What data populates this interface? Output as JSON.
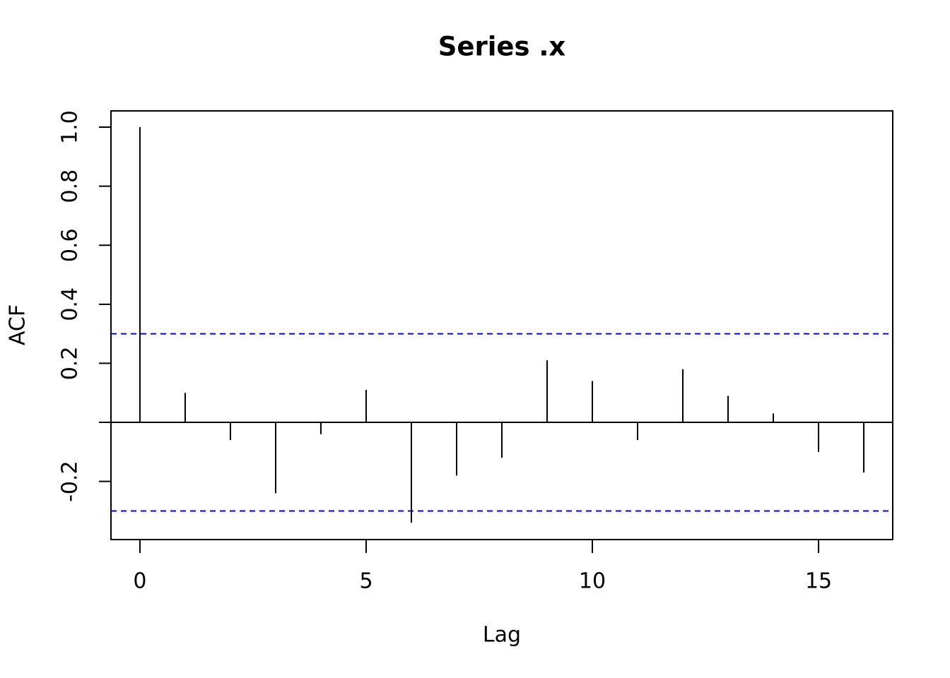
{
  "chart_data": {
    "type": "acf",
    "title": "Series  .x",
    "x_label": "Lag",
    "y_label": "ACF",
    "x": [
      0,
      1,
      2,
      3,
      4,
      5,
      6,
      7,
      8,
      9,
      10,
      11,
      12,
      13,
      14,
      15,
      16
    ],
    "values": [
      1.0,
      0.1,
      -0.06,
      -0.24,
      -0.04,
      0.11,
      -0.34,
      -0.18,
      -0.12,
      0.21,
      0.14,
      -0.06,
      0.18,
      0.09,
      0.03,
      -0.1,
      -0.17
    ],
    "color": "#000000",
    "ci_lines": {
      "values": [
        0.3,
        -0.3
      ],
      "color": "#0000ff"
    },
    "xlim": [
      -0.64,
      16.64
    ],
    "xticks": [
      0,
      5,
      10,
      15
    ],
    "ylim": [
      -0.397,
      1.055
    ],
    "yticks": [
      -0.2,
      0.2,
      0.4,
      0.6,
      0.8,
      {
        "value": 1,
        "label": "1.0"
      }
    ]
  }
}
